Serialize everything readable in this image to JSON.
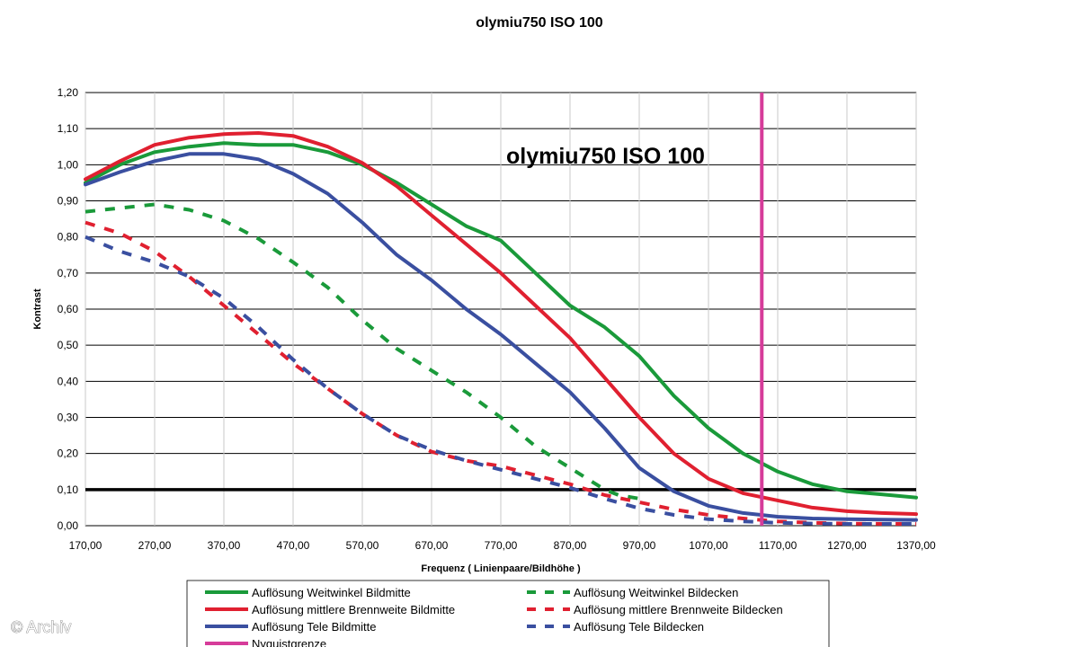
{
  "chart_data": {
    "type": "line",
    "title": "olymiu750 ISO 100",
    "inner_title": "olymiu750 ISO 100",
    "xlabel": "Frequenz ( Linienpaare/Bildhöhe )",
    "ylabel": "Kontrast",
    "xlim": [
      170,
      1370
    ],
    "ylim": [
      0,
      1.2
    ],
    "xticks": [
      "170,00",
      "270,00",
      "370,00",
      "470,00",
      "570,00",
      "670,00",
      "770,00",
      "870,00",
      "970,00",
      "1070,00",
      "1170,00",
      "1270,00",
      "1370,00"
    ],
    "yticks": [
      "0,00",
      "0,10",
      "0,20",
      "0,30",
      "0,40",
      "0,50",
      "0,60",
      "0,70",
      "0,80",
      "0,90",
      "1,00",
      "1,10",
      "1,20"
    ],
    "grid": true,
    "legend_position": "bottom",
    "reference_line": {
      "y": 0.1,
      "color": "#000000"
    },
    "nyquist": {
      "x": 1147,
      "color": "#d63c9a"
    },
    "series": [
      {
        "name": "Auflösung Weitwinkel Bildmitte",
        "color": "#1a9a3a",
        "dash": false,
        "x": [
          170,
          220,
          270,
          320,
          370,
          420,
          470,
          520,
          570,
          620,
          670,
          720,
          770,
          820,
          870,
          920,
          970,
          1020,
          1070,
          1120,
          1170,
          1220,
          1270,
          1320,
          1370
        ],
        "y": [
          0.95,
          1.0,
          1.035,
          1.05,
          1.06,
          1.055,
          1.055,
          1.035,
          1.0,
          0.95,
          0.89,
          0.83,
          0.79,
          0.7,
          0.61,
          0.55,
          0.47,
          0.36,
          0.27,
          0.2,
          0.15,
          0.115,
          0.095,
          0.087,
          0.078
        ]
      },
      {
        "name": "Auflösung mittlere Brennweite Bildmitte",
        "color": "#e02030",
        "dash": false,
        "x": [
          170,
          220,
          270,
          320,
          370,
          420,
          470,
          520,
          570,
          620,
          670,
          720,
          770,
          820,
          870,
          920,
          970,
          1020,
          1070,
          1120,
          1170,
          1220,
          1270,
          1320,
          1370
        ],
        "y": [
          0.96,
          1.01,
          1.055,
          1.075,
          1.085,
          1.088,
          1.08,
          1.05,
          1.005,
          0.94,
          0.86,
          0.78,
          0.7,
          0.61,
          0.52,
          0.41,
          0.3,
          0.2,
          0.13,
          0.09,
          0.07,
          0.05,
          0.04,
          0.035,
          0.032
        ]
      },
      {
        "name": "Auflösung Tele Bildmitte",
        "color": "#3a4fa0",
        "dash": false,
        "x": [
          170,
          220,
          270,
          320,
          370,
          420,
          470,
          520,
          570,
          620,
          670,
          720,
          770,
          820,
          870,
          920,
          970,
          1020,
          1070,
          1120,
          1170,
          1220,
          1270,
          1320,
          1370
        ],
        "y": [
          0.945,
          0.98,
          1.01,
          1.03,
          1.03,
          1.015,
          0.975,
          0.92,
          0.84,
          0.75,
          0.68,
          0.6,
          0.53,
          0.45,
          0.37,
          0.27,
          0.16,
          0.095,
          0.055,
          0.035,
          0.025,
          0.02,
          0.018,
          0.017,
          0.016
        ]
      },
      {
        "name": "Nyquistgrenze",
        "color": "#d63c9a",
        "dash": false,
        "x": [
          1147,
          1147
        ],
        "y": [
          0.0,
          1.2
        ]
      },
      {
        "name": "Auflösung Weitwinkel Bildecken",
        "color": "#1a9a3a",
        "dash": true,
        "x": [
          170,
          220,
          270,
          320,
          370,
          420,
          470,
          520,
          570,
          620,
          670,
          720,
          770,
          820,
          870,
          920,
          940,
          970
        ],
        "y": [
          0.87,
          0.88,
          0.89,
          0.875,
          0.845,
          0.795,
          0.73,
          0.66,
          0.57,
          0.49,
          0.43,
          0.37,
          0.3,
          0.22,
          0.16,
          0.1,
          0.085,
          0.075
        ]
      },
      {
        "name": "Auflösung mittlere Brennweite Bildbecken",
        "color": "#e02030",
        "dash": true,
        "x": [
          170,
          220,
          270,
          320,
          370,
          420,
          470,
          520,
          570,
          620,
          670,
          720,
          770,
          820,
          870,
          920,
          970,
          1020,
          1070,
          1120,
          1170,
          1220,
          1270,
          1320,
          1370
        ],
        "y": [
          0.84,
          0.81,
          0.76,
          0.69,
          0.61,
          0.53,
          0.45,
          0.38,
          0.31,
          0.25,
          0.205,
          0.18,
          0.165,
          0.14,
          0.115,
          0.085,
          0.065,
          0.045,
          0.03,
          0.02,
          0.012,
          0.008,
          0.006,
          0.005,
          0.005
        ]
      },
      {
        "name": "Auflösung Tele Bildecken",
        "color": "#3a4fa0",
        "dash": true,
        "x": [
          170,
          220,
          270,
          320,
          370,
          420,
          470,
          520,
          570,
          620,
          670,
          720,
          770,
          820,
          870,
          920,
          970,
          1020,
          1070,
          1120,
          1170,
          1220,
          1270,
          1320,
          1370
        ],
        "y": [
          0.8,
          0.76,
          0.73,
          0.69,
          0.63,
          0.55,
          0.46,
          0.38,
          0.31,
          0.25,
          0.21,
          0.18,
          0.155,
          0.13,
          0.105,
          0.075,
          0.048,
          0.03,
          0.018,
          0.012,
          0.008,
          0.006,
          0.005,
          0.005,
          0.005
        ]
      }
    ],
    "legend_entries": [
      {
        "label": "Auflösung Weitwinkel Bildmitte",
        "color": "#1a9a3a",
        "dash": false,
        "col": 0,
        "row": 0
      },
      {
        "label": "Auflösung mittlere Brennweite Bildmitte",
        "color": "#e02030",
        "dash": false,
        "col": 0,
        "row": 1
      },
      {
        "label": "Auflösung Tele Bildmitte",
        "color": "#3a4fa0",
        "dash": false,
        "col": 0,
        "row": 2
      },
      {
        "label": "Nyquistgrenze",
        "color": "#d63c9a",
        "dash": false,
        "col": 0,
        "row": 3
      },
      {
        "label": "Auflösung Weitwinkel Bildecken",
        "color": "#1a9a3a",
        "dash": true,
        "col": 1,
        "row": 0
      },
      {
        "label": "Auflösung mittlere Brennweite Bildecken",
        "color": "#e02030",
        "dash": true,
        "col": 1,
        "row": 1
      },
      {
        "label": "Auflösung Tele Bildecken",
        "color": "#3a4fa0",
        "dash": true,
        "col": 1,
        "row": 2
      }
    ]
  },
  "watermark": "© Archiv"
}
